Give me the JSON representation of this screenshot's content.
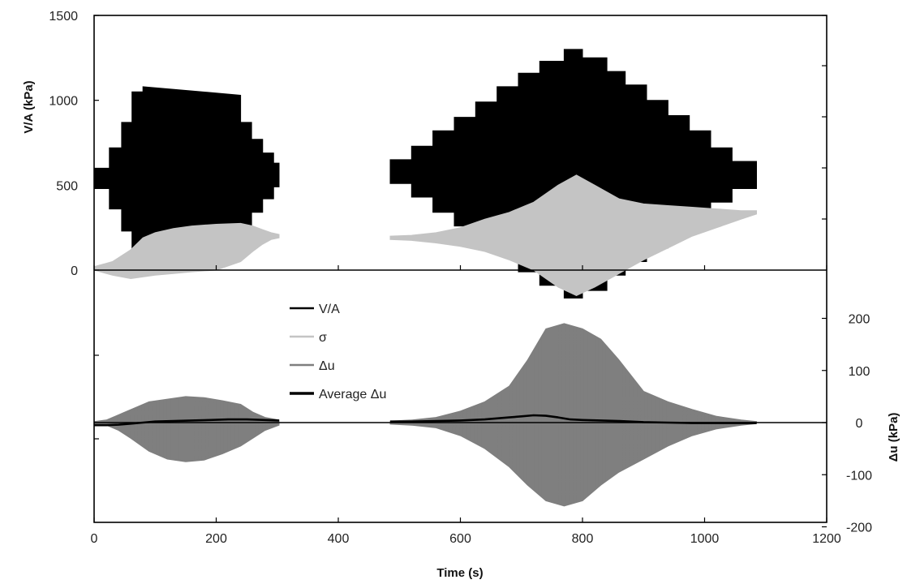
{
  "chart_data": {
    "type": "line",
    "xlabel": "Time (s)",
    "ylabel_left": "V/A (kPa)",
    "ylabel_right": "Δu (kPa)",
    "x_range": [
      0,
      1200
    ],
    "x_ticks": [
      0,
      200,
      400,
      600,
      800,
      1000,
      1200
    ],
    "y_left_range": [
      0,
      1500
    ],
    "y_left_ticks": [
      0,
      500,
      1000,
      1500
    ],
    "y_right_range": [
      -200,
      250
    ],
    "y_right_ticks": [
      -200,
      -100,
      0,
      100,
      200
    ],
    "grid": false,
    "legend_position": "center",
    "colors": {
      "va": "#000000",
      "sigma": "#c4c4c4",
      "du": "#7f7f7f",
      "avg_du": "#000000"
    },
    "series": [
      {
        "name": "V/A",
        "axis": "left",
        "style": "envelope",
        "segments": [
          {
            "x": [
              0,
              25,
              25,
              45,
              45,
              62,
              62,
              80,
              80,
              240,
              240,
              258,
              258,
              276,
              276,
              294,
              294,
              303
            ],
            "upper": [
              600,
              600,
              720,
              720,
              870,
              870,
              1050,
              1050,
              1080,
              1030,
              870,
              870,
              770,
              770,
              690,
              690,
              630,
              630
            ],
            "lower": [
              480,
              480,
              360,
              360,
              230,
              230,
              110,
              110,
              30,
              60,
              240,
              240,
              340,
              340,
              420,
              420,
              490,
              490
            ]
          },
          {
            "x": [
              485,
              520,
              520,
              555,
              555,
              590,
              590,
              625,
              625,
              660,
              660,
              695,
              695,
              730,
              730,
              770,
              770,
              800,
              800,
              840,
              840,
              870,
              870,
              905,
              905,
              940,
              940,
              975,
              975,
              1010,
              1010,
              1045,
              1045,
              1085
            ],
            "upper": [
              650,
              650,
              730,
              730,
              820,
              820,
              900,
              900,
              990,
              990,
              1080,
              1080,
              1160,
              1160,
              1230,
              1230,
              1300,
              1300,
              1250,
              1250,
              1170,
              1170,
              1090,
              1090,
              1000,
              1000,
              910,
              910,
              820,
              820,
              720,
              720,
              640,
              640
            ],
            "lower": [
              510,
              510,
              430,
              430,
              340,
              340,
              260,
              260,
              170,
              170,
              90,
              90,
              -10,
              -10,
              -90,
              -90,
              -165,
              -165,
              -120,
              -120,
              -30,
              -30,
              50,
              50,
              130,
              130,
              220,
              220,
              300,
              300,
              400,
              400,
              480,
              480
            ]
          }
        ]
      },
      {
        "name": "σ",
        "axis": "left",
        "style": "envelope",
        "segments": [
          {
            "x": [
              0,
              30,
              60,
              80,
              100,
              130,
              160,
              200,
              240,
              260,
              275,
              290,
              303
            ],
            "upper": [
              20,
              50,
              120,
              190,
              220,
              245,
              260,
              270,
              275,
              260,
              240,
              220,
              210
            ],
            "lower": [
              0,
              -30,
              -50,
              -40,
              -30,
              -20,
              -10,
              0,
              50,
              110,
              150,
              180,
              190
            ]
          },
          {
            "x": [
              485,
              520,
              560,
              600,
              640,
              680,
              720,
              760,
              790,
              820,
              860,
              900,
              940,
              980,
              1020,
              1060,
              1085
            ],
            "upper": [
              200,
              205,
              220,
              250,
              300,
              340,
              400,
              500,
              560,
              500,
              420,
              390,
              380,
              370,
              360,
              350,
              350
            ],
            "lower": [
              180,
              175,
              160,
              140,
              110,
              60,
              0,
              -100,
              -150,
              -100,
              -20,
              60,
              130,
              200,
              250,
              300,
              330
            ]
          }
        ]
      },
      {
        "name": "Δu",
        "axis": "right",
        "style": "envelope",
        "segments": [
          {
            "x": [
              0,
              20,
              40,
              60,
              90,
              120,
              150,
              180,
              210,
              240,
              260,
              280,
              303
            ],
            "upper": [
              2,
              5,
              15,
              25,
              40,
              45,
              50,
              48,
              42,
              35,
              20,
              10,
              5
            ],
            "lower": [
              -2,
              -5,
              -15,
              -30,
              -55,
              -70,
              -75,
              -72,
              -60,
              -45,
              -30,
              -15,
              -5
            ]
          },
          {
            "x": [
              485,
              520,
              560,
              600,
              640,
              680,
              710,
              740,
              770,
              800,
              830,
              860,
              900,
              940,
              980,
              1020,
              1060,
              1085
            ],
            "upper": [
              3,
              5,
              10,
              22,
              40,
              70,
              120,
              180,
              190,
              180,
              160,
              120,
              60,
              40,
              25,
              12,
              5,
              2
            ],
            "lower": [
              -3,
              -5,
              -10,
              -25,
              -50,
              -85,
              -120,
              -150,
              -160,
              -150,
              -120,
              -95,
              -70,
              -45,
              -25,
              -12,
              -5,
              -2
            ]
          }
        ]
      },
      {
        "name": "Average  Δu",
        "axis": "right",
        "style": "line",
        "segments": [
          {
            "x": [
              0,
              20,
              40,
              60,
              80,
              100,
              130,
              160,
              190,
              220,
              250,
              280,
              303
            ],
            "y": [
              -5,
              -5,
              -4,
              -2,
              0,
              2,
              3,
              4,
              5,
              6,
              6,
              5,
              4
            ]
          },
          {
            "x": [
              485,
              520,
              560,
              600,
              640,
              680,
              700,
              720,
              740,
              760,
              780,
              800,
              830,
              860,
              900,
              940,
              980,
              1020,
              1060,
              1085
            ],
            "y": [
              2,
              2,
              3,
              4,
              6,
              10,
              12,
              14,
              13,
              10,
              6,
              5,
              4,
              3,
              1,
              0,
              -1,
              -1,
              -1,
              -1
            ]
          }
        ]
      }
    ]
  }
}
